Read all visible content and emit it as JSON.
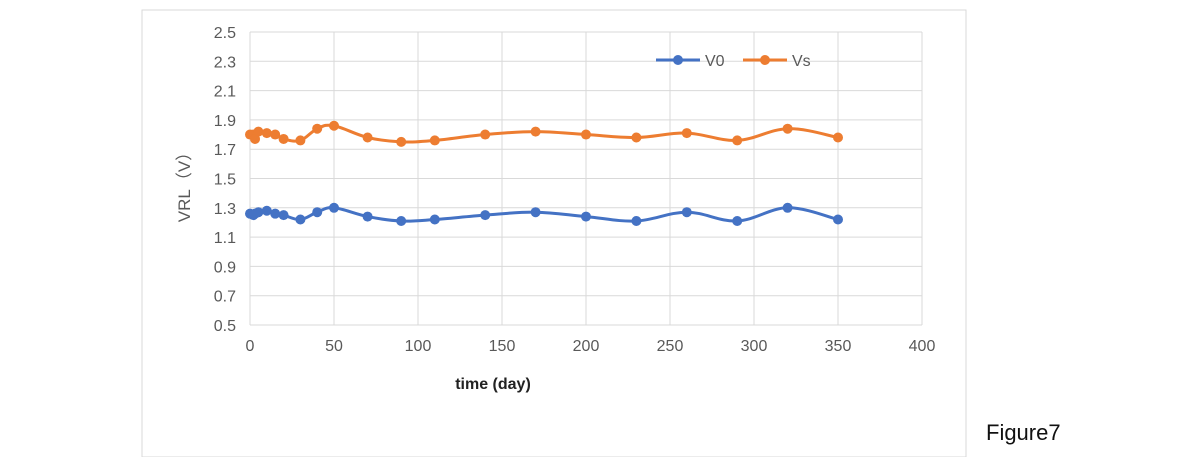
{
  "figure_caption": "Figure7",
  "chart_data": {
    "type": "line",
    "title": "",
    "xlabel": "time (day)",
    "ylabel": "VRL（V）",
    "xlim": [
      0,
      400
    ],
    "ylim": [
      0.5,
      2.5
    ],
    "x_ticks": [
      0,
      50,
      100,
      150,
      200,
      250,
      300,
      350,
      400
    ],
    "y_ticks": [
      0.5,
      0.7,
      0.9,
      1.1,
      1.3,
      1.5,
      1.7,
      1.9,
      2.1,
      2.3,
      2.5
    ],
    "x_tick_labels": [
      "0",
      "50",
      "100",
      "150",
      "200",
      "250",
      "300",
      "350",
      "400"
    ],
    "y_tick_labels": [
      "0.5",
      "0.7",
      "0.9",
      "1.1",
      "1.3",
      "1.5",
      "1.7",
      "1.9",
      "2.1",
      "2.3",
      "2.5"
    ],
    "grid": true,
    "legend_position": "top-right",
    "series": [
      {
        "name": "V0",
        "color": "#4472C4",
        "x": [
          0,
          2,
          3,
          5,
          10,
          15,
          20,
          30,
          40,
          50,
          70,
          90,
          110,
          140,
          170,
          200,
          230,
          260,
          290,
          320,
          350
        ],
        "y": [
          1.26,
          1.25,
          1.26,
          1.27,
          1.28,
          1.26,
          1.25,
          1.22,
          1.27,
          1.3,
          1.24,
          1.21,
          1.22,
          1.25,
          1.27,
          1.24,
          1.21,
          1.27,
          1.21,
          1.3,
          1.22
        ]
      },
      {
        "name": "Vs",
        "color": "#ED7D31",
        "x": [
          0,
          2,
          3,
          5,
          10,
          15,
          20,
          30,
          40,
          50,
          70,
          90,
          110,
          140,
          170,
          200,
          230,
          260,
          290,
          320,
          350
        ],
        "y": [
          1.8,
          1.8,
          1.77,
          1.82,
          1.81,
          1.8,
          1.77,
          1.76,
          1.84,
          1.86,
          1.78,
          1.75,
          1.76,
          1.8,
          1.82,
          1.8,
          1.78,
          1.81,
          1.76,
          1.84,
          1.78
        ]
      }
    ]
  }
}
